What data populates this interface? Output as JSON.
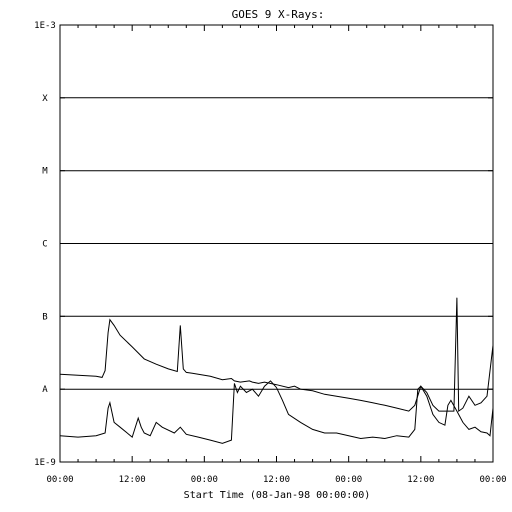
{
  "chart_data": {
    "type": "line",
    "title": "GOES 9 X-Rays:",
    "xlabel": "Start Time (08-Jan-98 00:00:00)",
    "ylabel": "",
    "y_scale": "log",
    "ylim": [
      1e-09,
      0.001
    ],
    "xlim_hours": [
      0,
      72
    ],
    "x_tick_labels": [
      "00:00",
      "12:00",
      "00:00",
      "12:00",
      "00:00",
      "12:00",
      "00:00"
    ],
    "x_tick_hours": [
      0,
      12,
      24,
      36,
      48,
      60,
      72
    ],
    "y_tick_labels": [
      "1E-9",
      "A",
      "B",
      "C",
      "M",
      "X",
      "1E-3"
    ],
    "y_tick_values": [
      1e-09,
      1e-08,
      1e-07,
      1e-06,
      1e-05,
      0.0001,
      0.001
    ],
    "grid_lines_at": [
      1e-08,
      1e-07,
      1e-06,
      1e-05,
      0.0001
    ],
    "series": [
      {
        "x_hours": [
          0,
          3,
          6,
          7,
          7.5,
          8,
          8.3,
          9,
          10,
          12,
          14,
          16,
          18,
          19.5,
          20,
          20.5,
          21,
          22,
          23,
          25,
          27,
          28.5,
          29,
          30,
          31.5,
          32,
          33,
          34,
          36,
          38,
          39,
          40,
          42,
          44,
          46,
          48,
          50,
          52,
          54,
          56,
          58,
          59,
          60,
          61,
          62,
          63,
          64,
          65.5,
          66,
          66.3,
          67,
          68,
          69,
          70,
          71,
          72
        ],
        "values": [
          1.6e-08,
          1.55e-08,
          1.5e-08,
          1.45e-08,
          1.8e-08,
          6e-08,
          9e-08,
          7.5e-08,
          5.5e-08,
          3.8e-08,
          2.6e-08,
          2.2e-08,
          1.9e-08,
          1.75e-08,
          7.5e-08,
          1.9e-08,
          1.7e-08,
          1.65e-08,
          1.6e-08,
          1.5e-08,
          1.35e-08,
          1.4e-08,
          1.3e-08,
          1.25e-08,
          1.3e-08,
          1.25e-08,
          1.2e-08,
          1.25e-08,
          1.15e-08,
          1.05e-08,
          1.1e-08,
          1e-08,
          9.5e-09,
          8.5e-09,
          8e-09,
          7.5e-09,
          7e-09,
          6.5e-09,
          6e-09,
          5.5e-09,
          5e-09,
          6e-09,
          1.1e-08,
          9e-09,
          6e-09,
          5e-09,
          5e-09,
          5e-09,
          1.8e-07,
          5e-09,
          5.5e-09,
          8e-09,
          6e-09,
          6.5e-09,
          8e-09,
          4e-08
        ]
      },
      {
        "x_hours": [
          0,
          3,
          6,
          7.5,
          8,
          8.3,
          9,
          10,
          12,
          13,
          13.5,
          14,
          15,
          16,
          17,
          19,
          20,
          21,
          23,
          25,
          27,
          28.5,
          29,
          29.5,
          30,
          31,
          32,
          33,
          34,
          35,
          36,
          37,
          38,
          40,
          42,
          44,
          46,
          48,
          50,
          52,
          54,
          56,
          58,
          59,
          59.5,
          60,
          61,
          62,
          63,
          64,
          64.5,
          65,
          66,
          67,
          68,
          69,
          70,
          71,
          71.5,
          72
        ],
        "values": [
          2.3e-09,
          2.2e-09,
          2.3e-09,
          2.5e-09,
          5.5e-09,
          6.5e-09,
          3.5e-09,
          3e-09,
          2.2e-09,
          4e-09,
          3e-09,
          2.5e-09,
          2.3e-09,
          3.5e-09,
          3e-09,
          2.5e-09,
          3e-09,
          2.4e-09,
          2.2e-09,
          2e-09,
          1.8e-09,
          2e-09,
          1.2e-08,
          9e-09,
          1.1e-08,
          9e-09,
          1e-08,
          8e-09,
          1.1e-08,
          1.3e-08,
          1.05e-08,
          7e-09,
          4.5e-09,
          3.5e-09,
          2.8e-09,
          2.5e-09,
          2.5e-09,
          2.3e-09,
          2.1e-09,
          2.2e-09,
          2.1e-09,
          2.3e-09,
          2.2e-09,
          2.8e-09,
          1e-08,
          1.1e-08,
          8e-09,
          4.5e-09,
          3.5e-09,
          3.2e-09,
          6e-09,
          7e-09,
          5e-09,
          3.5e-09,
          2.8e-09,
          3e-09,
          2.6e-09,
          2.5e-09,
          2.3e-09,
          5.5e-09
        ]
      }
    ]
  }
}
